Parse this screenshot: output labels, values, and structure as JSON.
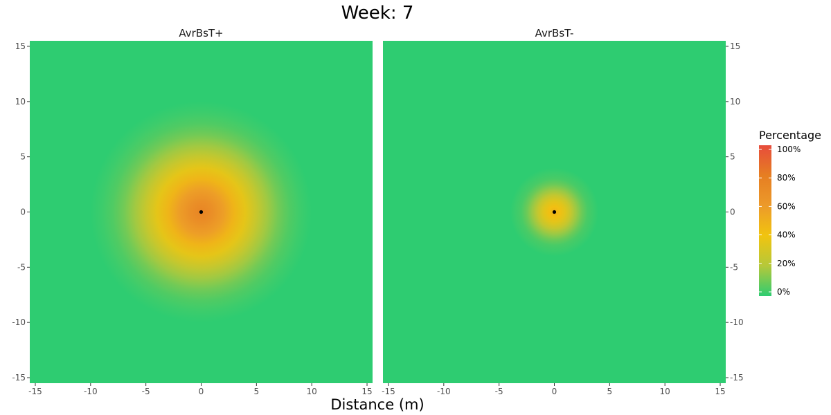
{
  "chart_data": {
    "type": "heatmap",
    "title": "Week: 7",
    "xlabel": "Distance (m)",
    "ylabel": "",
    "xlim": [
      -15.5,
      15.5
    ],
    "ylim": [
      -15.5,
      15.5
    ],
    "x_ticks": [
      -15,
      -10,
      -5,
      0,
      5,
      10,
      15
    ],
    "y_ticks": [
      -15,
      -10,
      -5,
      0,
      5,
      10,
      15
    ],
    "x_tick_labels": [
      "-15",
      "-10",
      "-5",
      "0",
      "5",
      "10",
      "15"
    ],
    "y_tick_labels": [
      "-15",
      "-10",
      "-5",
      "0",
      "5",
      "10",
      "15"
    ],
    "grid": false,
    "legend": {
      "title": "Percentage",
      "placement": "right",
      "range": [
        0,
        100
      ],
      "breaks": [
        0,
        20,
        40,
        60,
        80,
        100
      ],
      "labels": [
        "0%",
        "20%",
        "40%",
        "60%",
        "80%",
        "100%"
      ],
      "colors": [
        "#2ecc71",
        "#b5c83a",
        "#f1c40f",
        "#ec9a2a",
        "#e67e22",
        "#e74c3c"
      ]
    },
    "panels": [
      {
        "name": "AvrBsT+",
        "center": [
          0,
          0
        ],
        "peak_percent": 75,
        "radial_profile": [
          [
            0,
            75
          ],
          [
            1,
            68
          ],
          [
            2,
            58
          ],
          [
            3,
            47
          ],
          [
            4,
            36
          ],
          [
            5,
            26
          ],
          [
            6,
            17
          ],
          [
            7,
            10
          ],
          [
            8,
            5
          ],
          [
            9,
            2
          ],
          [
            10,
            0
          ]
        ],
        "y_axis_side": "left"
      },
      {
        "name": "AvrBsT-",
        "center": [
          0,
          0
        ],
        "peak_percent": 48,
        "radial_profile": [
          [
            0,
            48
          ],
          [
            0.5,
            42
          ],
          [
            1,
            34
          ],
          [
            1.5,
            25
          ],
          [
            2,
            16
          ],
          [
            2.5,
            9
          ],
          [
            3,
            4
          ],
          [
            4,
            0
          ]
        ],
        "y_axis_side": "right"
      }
    ]
  }
}
